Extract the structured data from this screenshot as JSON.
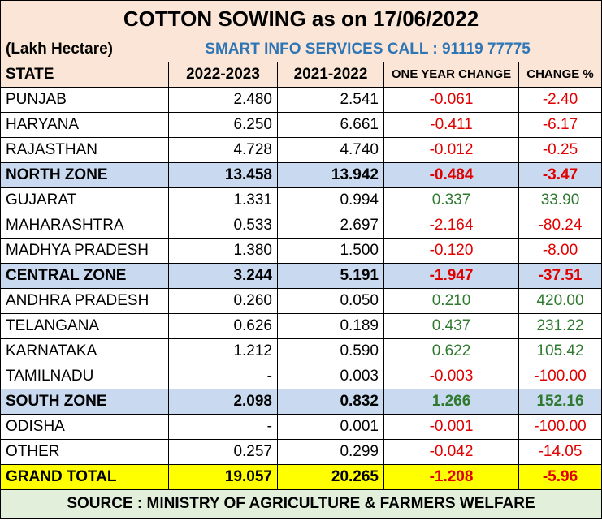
{
  "title": "COTTON SOWING  as on 17/06/2022",
  "unit": "(Lakh Hectare)",
  "info": "SMART INFO SERVICES CALL : 91119 77775",
  "headers": [
    "STATE",
    "2022-2023",
    "2021-2022",
    "ONE YEAR CHANGE",
    "CHANGE %"
  ],
  "rows": [
    {
      "state": "PUNJAB",
      "y2022": "2.480",
      "y2021": "2.541",
      "change": "-0.061",
      "pct": "-2.40",
      "type": "normal",
      "trend": "red"
    },
    {
      "state": "HARYANA",
      "y2022": "6.250",
      "y2021": "6.661",
      "change": "-0.411",
      "pct": "-6.17",
      "type": "normal",
      "trend": "red"
    },
    {
      "state": "RAJASTHAN",
      "y2022": "4.728",
      "y2021": "4.740",
      "change": "-0.012",
      "pct": "-0.25",
      "type": "normal",
      "trend": "red"
    },
    {
      "state": "NORTH ZONE",
      "y2022": "13.458",
      "y2021": "13.942",
      "change": "-0.484",
      "pct": "-3.47",
      "type": "zone",
      "trend": "red"
    },
    {
      "state": "GUJARAT",
      "y2022": "1.331",
      "y2021": "0.994",
      "change": "0.337",
      "pct": "33.90",
      "type": "normal",
      "trend": "green"
    },
    {
      "state": "MAHARASHTRA",
      "y2022": "0.533",
      "y2021": "2.697",
      "change": "-2.164",
      "pct": "-80.24",
      "type": "normal",
      "trend": "red"
    },
    {
      "state": "MADHYA PRADESH",
      "y2022": "1.380",
      "y2021": "1.500",
      "change": "-0.120",
      "pct": "-8.00",
      "type": "normal",
      "trend": "red"
    },
    {
      "state": "CENTRAL ZONE",
      "y2022": "3.244",
      "y2021": "5.191",
      "change": "-1.947",
      "pct": "-37.51",
      "type": "zone",
      "trend": "red"
    },
    {
      "state": "ANDHRA PRADESH",
      "y2022": "0.260",
      "y2021": "0.050",
      "change": "0.210",
      "pct": "420.00",
      "type": "normal",
      "trend": "green"
    },
    {
      "state": "TELANGANA",
      "y2022": "0.626",
      "y2021": "0.189",
      "change": "0.437",
      "pct": "231.22",
      "type": "normal",
      "trend": "green"
    },
    {
      "state": "KARNATAKA",
      "y2022": "1.212",
      "y2021": "0.590",
      "change": "0.622",
      "pct": "105.42",
      "type": "normal",
      "trend": "green"
    },
    {
      "state": "TAMILNADU",
      "y2022": "-",
      "y2021": "0.003",
      "change": "-0.003",
      "pct": "-100.00",
      "type": "normal",
      "trend": "red"
    },
    {
      "state": "SOUTH ZONE",
      "y2022": "2.098",
      "y2021": "0.832",
      "change": "1.266",
      "pct": "152.16",
      "type": "zone",
      "trend": "green"
    },
    {
      "state": "ODISHA",
      "y2022": "-",
      "y2021": "0.001",
      "change": "-0.001",
      "pct": "-100.00",
      "type": "normal",
      "trend": "red"
    },
    {
      "state": "OTHER",
      "y2022": "0.257",
      "y2021": "0.299",
      "change": "-0.042",
      "pct": "-14.05",
      "type": "normal",
      "trend": "red"
    },
    {
      "state": "GRAND TOTAL",
      "y2022": "19.057",
      "y2021": "20.265",
      "change": "-1.208",
      "pct": "-5.96",
      "type": "total",
      "trend": "red"
    }
  ],
  "source": "SOURCE : MINISTRY OF AGRICULTURE & FARMERS WELFARE"
}
